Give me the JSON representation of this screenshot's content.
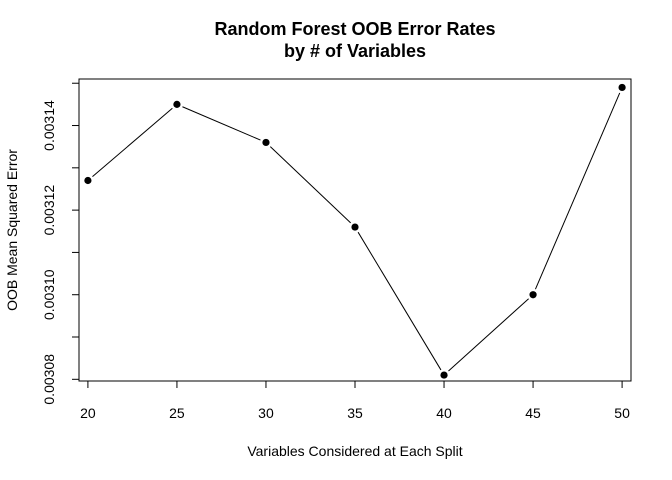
{
  "chart_data": {
    "type": "line",
    "title_lines": [
      "Random Forest OOB Error Rates",
      "by # of Variables"
    ],
    "xlabel": "Variables Considered at Each Split",
    "ylabel": "OOB Mean Squared Error",
    "x": [
      20,
      25,
      30,
      35,
      40,
      45,
      50
    ],
    "y": [
      0.003127,
      0.003145,
      0.003136,
      0.003116,
      0.003081,
      0.0031,
      0.003149
    ],
    "xticks": [
      "20",
      "25",
      "30",
      "35",
      "40",
      "45",
      "50"
    ],
    "yticks": [
      "0.00308",
      "0.00310",
      "0.00312",
      "0.00314"
    ],
    "xlim": [
      19.5,
      50.5
    ],
    "ylim": [
      0.0030796,
      0.003151
    ],
    "grid": false,
    "legend": "none",
    "markers": "filled-circle",
    "line_color": "#000000"
  }
}
